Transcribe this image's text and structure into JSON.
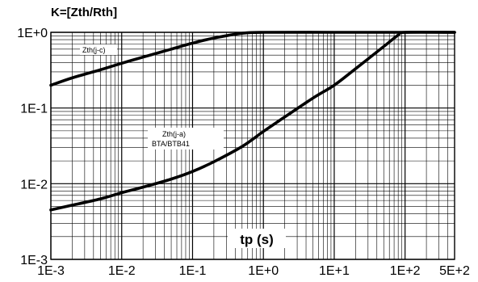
{
  "chart_data": {
    "type": "line",
    "title": "K=[Zth/Rth]",
    "xlabel": "tp (s)",
    "ylabel": "",
    "x_scale": "log",
    "y_scale": "log",
    "xlim": [
      0.001,
      500
    ],
    "ylim": [
      0.001,
      1
    ],
    "grid": true,
    "x_ticks": [
      "1E-3",
      "1E-2",
      "1E-1",
      "1E+0",
      "1E+1",
      "1E+2",
      "5E+2"
    ],
    "x_tick_values": [
      0.001,
      0.01,
      0.1,
      1,
      10,
      100,
      500
    ],
    "y_ticks": [
      "1E-3",
      "1E-2",
      "1E-1",
      "1E+0"
    ],
    "y_tick_values": [
      0.001,
      0.01,
      0.1,
      1
    ],
    "series": [
      {
        "name": "Zth(j-c)",
        "x": [
          0.001,
          0.002,
          0.005,
          0.01,
          0.02,
          0.05,
          0.1,
          0.2,
          0.5,
          1,
          10,
          100,
          500
        ],
        "y": [
          0.2,
          0.25,
          0.32,
          0.39,
          0.47,
          0.6,
          0.72,
          0.84,
          0.97,
          1.0,
          1.0,
          1.0,
          1.0
        ]
      },
      {
        "name": "Zth(j-a)",
        "name_line2": "BTA/BTB41",
        "x": [
          0.001,
          0.002,
          0.005,
          0.01,
          0.02,
          0.05,
          0.1,
          0.2,
          0.5,
          1,
          2,
          5,
          10,
          20,
          50,
          80,
          100,
          500
        ],
        "y": [
          0.0045,
          0.0052,
          0.0063,
          0.0076,
          0.009,
          0.0115,
          0.0145,
          0.0195,
          0.031,
          0.049,
          0.076,
          0.135,
          0.2,
          0.33,
          0.65,
          0.92,
          1.0,
          1.0
        ]
      }
    ]
  }
}
